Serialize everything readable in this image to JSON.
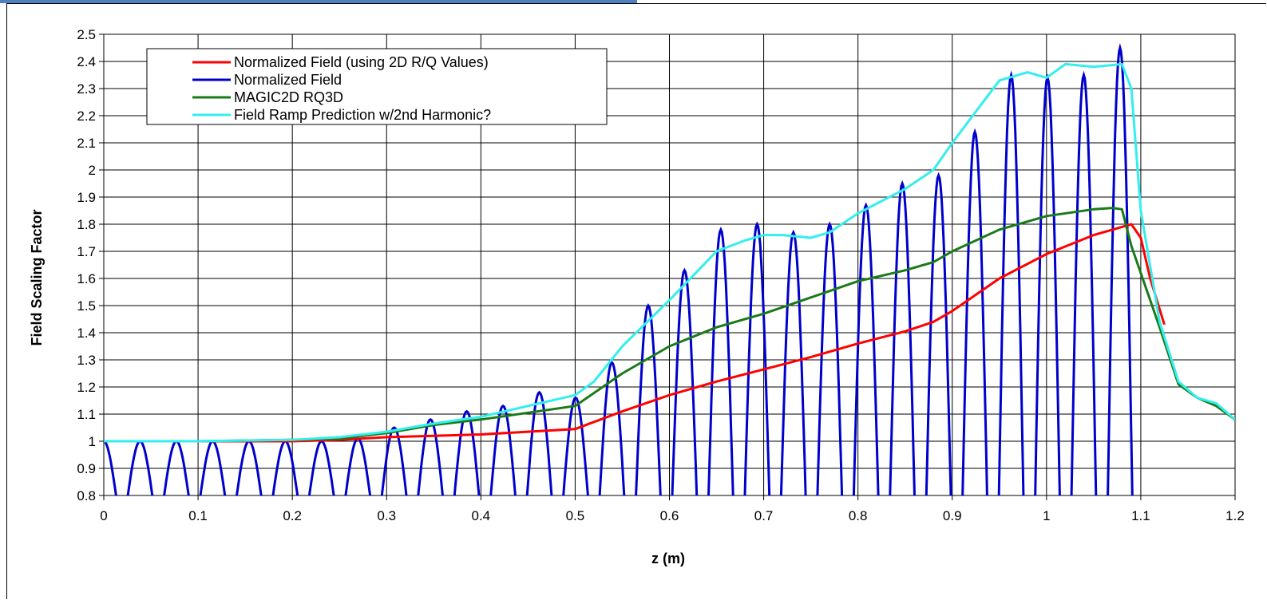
{
  "chart_data": {
    "type": "line",
    "title": "",
    "xlabel": "z (m)",
    "ylabel": "Field Scaling Factor",
    "xlim": [
      0,
      1.2
    ],
    "ylim": [
      0.8,
      2.5
    ],
    "grid": true,
    "legend_position": "top-left",
    "x_ticks": [
      "0",
      "0.1",
      "0.2",
      "0.3",
      "0.4",
      "0.5",
      "0.6",
      "0.7",
      "0.8",
      "0.9",
      "1",
      "1.1",
      "1.2"
    ],
    "y_ticks": [
      "0.8",
      "0.9",
      "1",
      "1.1",
      "1.2",
      "1.3",
      "1.4",
      "1.5",
      "1.6",
      "1.7",
      "1.8",
      "1.9",
      "2",
      "2.1",
      "2.2",
      "2.3",
      "2.4",
      "2.5"
    ],
    "series": [
      {
        "name": "Normalized Field (using 2D R/Q Values)",
        "color": "#ff0000",
        "x": [
          0,
          0.1,
          0.2,
          0.25,
          0.3,
          0.35,
          0.4,
          0.45,
          0.5,
          0.55,
          0.6,
          0.65,
          0.7,
          0.75,
          0.8,
          0.85,
          0.88,
          0.9,
          0.95,
          1.0,
          1.05,
          1.08,
          1.09,
          1.1,
          1.11,
          1.125
        ],
        "y": [
          1.0,
          1.0,
          1.0,
          1.005,
          1.015,
          1.02,
          1.025,
          1.035,
          1.045,
          1.11,
          1.17,
          1.22,
          1.265,
          1.31,
          1.36,
          1.405,
          1.44,
          1.48,
          1.6,
          1.69,
          1.76,
          1.79,
          1.8,
          1.75,
          1.6,
          1.43
        ]
      },
      {
        "name": "Normalized Field",
        "color": "#0000cc",
        "cell_centers": [
          0,
          0.0385,
          0.077,
          0.1155,
          0.154,
          0.1925,
          0.231,
          0.2695,
          0.308,
          0.3465,
          0.385,
          0.4235,
          0.462,
          0.5005,
          0.539,
          0.5775,
          0.616,
          0.6545,
          0.693,
          0.7315,
          0.77,
          0.8085,
          0.847,
          0.8855,
          0.924,
          0.9625,
          1.001,
          1.0395,
          1.078
        ],
        "cell_peaks": [
          1.0,
          1.0,
          1.0,
          1.0,
          1.0,
          1.0,
          1.0,
          1.01,
          1.05,
          1.08,
          1.11,
          1.13,
          1.18,
          1.16,
          1.29,
          1.5,
          1.63,
          1.78,
          1.8,
          1.77,
          1.8,
          1.87,
          1.95,
          1.98,
          2.14,
          2.35,
          2.34,
          2.35,
          2.45
        ],
        "cell_half_width": 0.013,
        "y_floor": 0.8
      },
      {
        "name": "MAGIC2D RQ3D",
        "color": "#1a7a1a",
        "x": [
          0,
          0.1,
          0.2,
          0.25,
          0.3,
          0.35,
          0.4,
          0.45,
          0.5,
          0.55,
          0.6,
          0.65,
          0.7,
          0.75,
          0.8,
          0.85,
          0.88,
          0.9,
          0.95,
          1.0,
          1.05,
          1.07,
          1.08,
          1.09,
          1.1,
          1.12,
          1.14,
          1.16,
          1.18,
          1.2
        ],
        "y": [
          1.0,
          1.0,
          1.005,
          1.01,
          1.03,
          1.06,
          1.08,
          1.105,
          1.13,
          1.25,
          1.35,
          1.42,
          1.47,
          1.53,
          1.59,
          1.63,
          1.66,
          1.7,
          1.78,
          1.83,
          1.855,
          1.86,
          1.855,
          1.72,
          1.62,
          1.42,
          1.21,
          1.16,
          1.13,
          1.08
        ]
      },
      {
        "name": "Field Ramp Prediction w/2nd Harmonic?",
        "color": "#33eeee",
        "x": [
          0,
          0.1,
          0.2,
          0.25,
          0.3,
          0.35,
          0.4,
          0.45,
          0.5,
          0.52,
          0.55,
          0.6,
          0.65,
          0.68,
          0.7,
          0.72,
          0.75,
          0.77,
          0.8,
          0.85,
          0.88,
          0.9,
          0.95,
          0.98,
          1.0,
          1.02,
          1.05,
          1.08,
          1.09,
          1.1,
          1.12,
          1.14,
          1.16,
          1.18,
          1.2
        ],
        "y": [
          1.0,
          1.0,
          1.005,
          1.015,
          1.035,
          1.065,
          1.09,
          1.13,
          1.17,
          1.22,
          1.35,
          1.52,
          1.7,
          1.74,
          1.76,
          1.76,
          1.75,
          1.77,
          1.84,
          1.93,
          2.0,
          2.1,
          2.33,
          2.36,
          2.34,
          2.39,
          2.38,
          2.39,
          2.3,
          1.85,
          1.44,
          1.22,
          1.16,
          1.14,
          1.08
        ]
      }
    ]
  }
}
